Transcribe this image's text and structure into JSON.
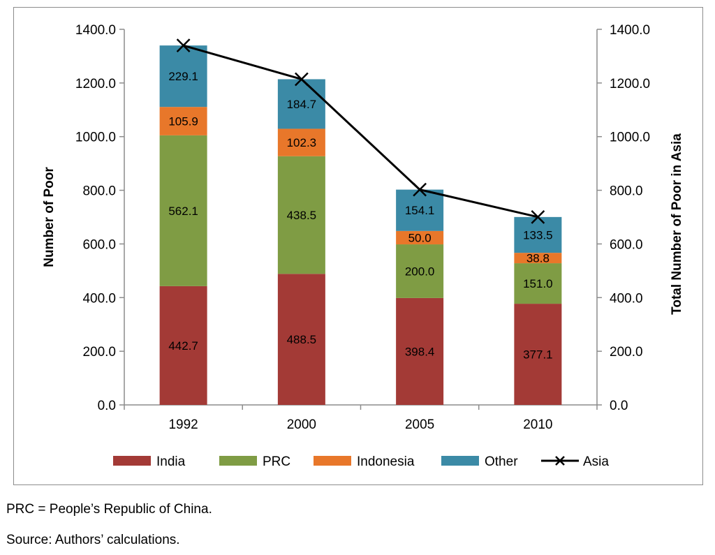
{
  "chart_data": {
    "type": "bar",
    "stacked": true,
    "categories": [
      "1992",
      "2000",
      "2005",
      "2010"
    ],
    "series": [
      {
        "name": "India",
        "color": "#a33a36",
        "values": [
          442.7,
          488.5,
          398.4,
          377.1
        ],
        "labels": [
          "442.7",
          "488.5",
          "398.4",
          "377.1"
        ]
      },
      {
        "name": "PRC",
        "color": "#7f9c44",
        "values": [
          562.1,
          438.5,
          200.0,
          151.0
        ],
        "labels": [
          "562.1",
          "438.5",
          "200.0",
          "151.0"
        ]
      },
      {
        "name": "Indonesia",
        "color": "#e8772a",
        "values": [
          105.9,
          102.3,
          50.0,
          38.8
        ],
        "labels": [
          "105.9",
          "102.3",
          "50.0",
          "38.8"
        ]
      },
      {
        "name": "Other",
        "color": "#3b8aa6",
        "values": [
          229.1,
          184.7,
          154.1,
          133.5
        ],
        "labels": [
          "229.1",
          "184.7",
          "154.1",
          "133.5"
        ]
      }
    ],
    "line_series": {
      "name": "Asia",
      "color": "#000000",
      "marker": "x",
      "values": [
        1339.8,
        1214.0,
        802.5,
        700.4
      ],
      "axis": "right"
    },
    "ylabel": "Number of Poor",
    "y2label": "Total Number of Poor in Asia",
    "ylim": [
      0,
      1400
    ],
    "y2lim": [
      0,
      1400
    ],
    "yticks": [
      "0.0",
      "200.0",
      "400.0",
      "600.0",
      "800.0",
      "1000.0",
      "1200.0",
      "1400.0"
    ],
    "y2ticks": [
      "0.0",
      "200.0",
      "400.0",
      "600.0",
      "800.0",
      "1000.0",
      "1200.0",
      "1400.0"
    ],
    "legend": [
      "India",
      "PRC",
      "Indonesia",
      "Other",
      "Asia"
    ],
    "legend_position": "bottom",
    "grid": false
  },
  "notes": {
    "abbreviation": "PRC = People’s Republic of China.",
    "source": "Source: Authors’ calculations."
  }
}
